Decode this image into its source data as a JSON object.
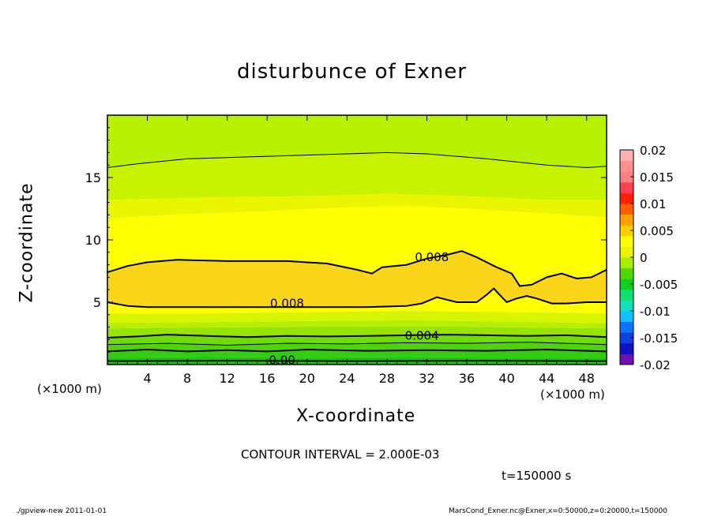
{
  "chart_data": {
    "type": "heatmap",
    "title": "disturbunce of Exner",
    "xlabel": "X-coordinate",
    "ylabel": "Z-coordinate",
    "x_unit": "(×1000 m)",
    "z_unit": "(×1000 m)",
    "xlim": [
      0,
      50
    ],
    "ylim": [
      0,
      20
    ],
    "x_ticks": [
      4,
      8,
      12,
      16,
      20,
      24,
      28,
      32,
      36,
      40,
      44,
      48
    ],
    "y_ticks": [
      5,
      10,
      15
    ],
    "contour_interval": "CONTOUR INTERVAL = 2.000E-03",
    "time_label": "t=150000 s",
    "colorbar": {
      "ticks": [
        "0.02",
        "0.015",
        "0.01",
        "0.005",
        "0",
        "-0.005",
        "-0.01",
        "-0.015",
        "-0.02"
      ],
      "range": [
        -0.02,
        0.02
      ]
    },
    "fill_bands": [
      {
        "level": 0.001,
        "color": "#2fcc12"
      },
      {
        "level": 0.002,
        "color": "#4fd60e"
      },
      {
        "level": 0.003,
        "color": "#7adf08"
      },
      {
        "level": 0.004,
        "color": "#a4ea04"
      },
      {
        "level": 0.005,
        "color": "#c2f002"
      },
      {
        "level": 0.006,
        "color": "#e7f500"
      },
      {
        "level": 0.007,
        "color": "#ffff00"
      },
      {
        "level": 0.008,
        "color": "#fbd51a"
      }
    ],
    "contour_labels": [
      {
        "text": "0.008",
        "x": 32.5,
        "z": 8.6
      },
      {
        "text": "0.008",
        "x": 18.0,
        "z": 4.9
      },
      {
        "text": "0.004",
        "x": 31.5,
        "z": 2.3
      },
      {
        "text": "0.00",
        "x": 17.5,
        "z": 0.35
      }
    ]
  },
  "footer": {
    "left": "./gpview-new  2011-01-01",
    "right": "MarsCond_Exner.nc@Exner,x=0:50000,z=0:20000,t=150000"
  }
}
